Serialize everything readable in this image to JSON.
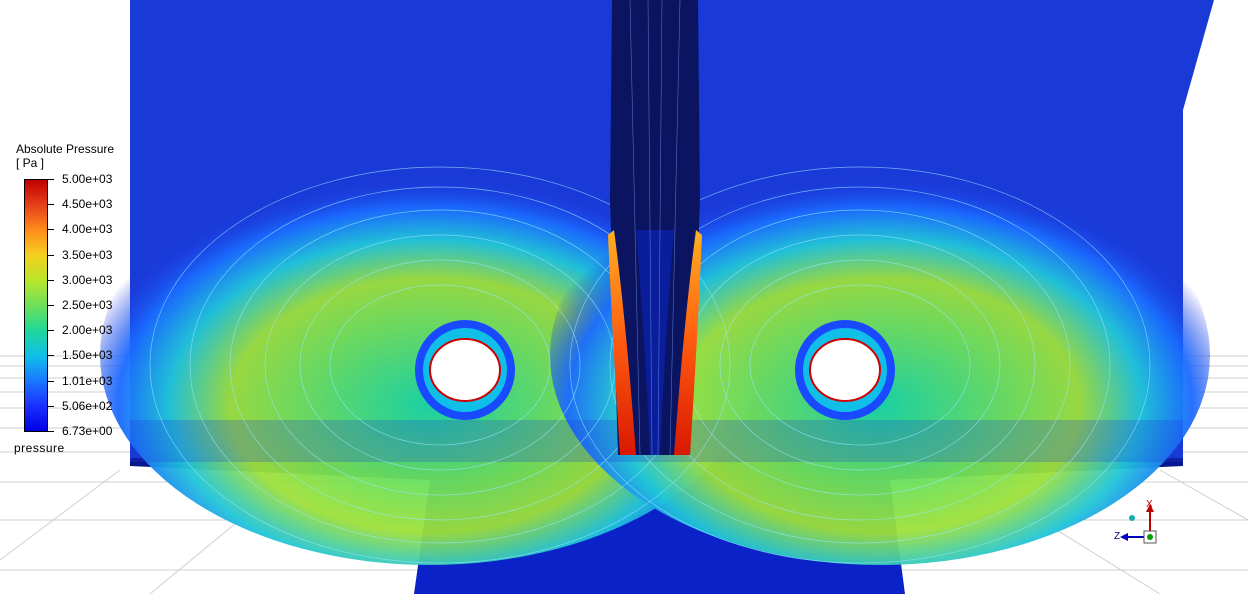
{
  "legend": {
    "title": "Absolute Pressure",
    "unit": "[ Pa ]",
    "variable": "pressure",
    "ticks": [
      "5.00e+03",
      "4.50e+03",
      "4.00e+03",
      "3.50e+03",
      "3.00e+03",
      "2.50e+03",
      "2.00e+03",
      "1.50e+03",
      "1.01e+03",
      "5.06e+02",
      "6.73e+00"
    ]
  },
  "triad": {
    "x_label": "X",
    "z_label": "Z"
  },
  "colors": {
    "background": "#ffffff",
    "field_low": "#0a1fc8",
    "field_high": "#c00000"
  }
}
